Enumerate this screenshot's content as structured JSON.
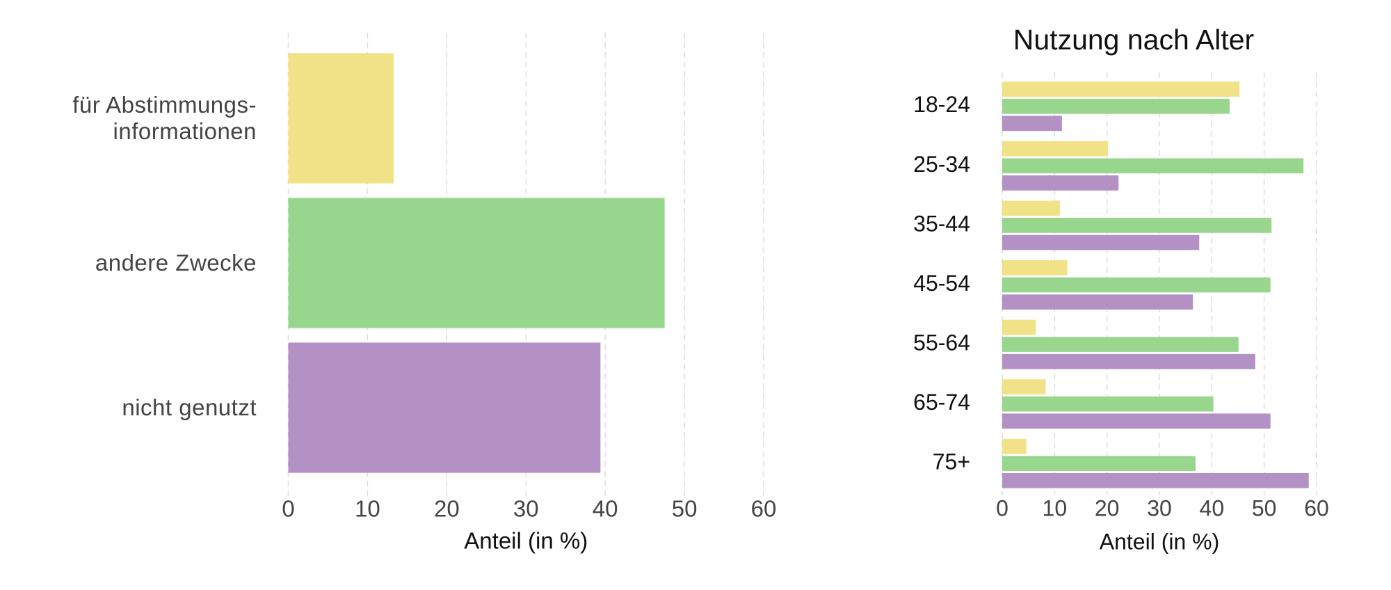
{
  "chart_data": [
    {
      "type": "barh",
      "categories": [
        "für Abstimmungs-\ninformationen",
        "andere Zwecke",
        "nicht genutzt"
      ],
      "values": [
        13.3,
        47.5,
        39.4
      ],
      "colors": [
        "#f2e287",
        "#98d68e",
        "#b491c4"
      ],
      "xlabel": "Anteil (in %)",
      "xlim": [
        0,
        60
      ],
      "xticks": [
        0,
        10,
        20,
        30,
        40,
        50,
        60
      ],
      "grid": true
    },
    {
      "type": "grouped-barh",
      "title": "Nutzung nach Alter",
      "categories": [
        "18-24",
        "25-34",
        "35-44",
        "45-54",
        "55-64",
        "65-74",
        "75+"
      ],
      "series": [
        {
          "color": "#f2e287",
          "values": [
            45.3,
            20.2,
            11.0,
            12.4,
            6.4,
            8.3,
            4.6
          ]
        },
        {
          "color": "#98d68e",
          "values": [
            43.4,
            57.5,
            51.4,
            51.2,
            45.1,
            40.3,
            36.9
          ]
        },
        {
          "color": "#b491c4",
          "values": [
            11.4,
            22.2,
            37.6,
            36.4,
            48.3,
            51.2,
            58.5
          ]
        }
      ],
      "xlabel": "Anteil (in %)",
      "xlim": [
        0,
        60
      ],
      "xticks": [
        0,
        10,
        20,
        30,
        40,
        50,
        60
      ],
      "grid": true
    }
  ]
}
